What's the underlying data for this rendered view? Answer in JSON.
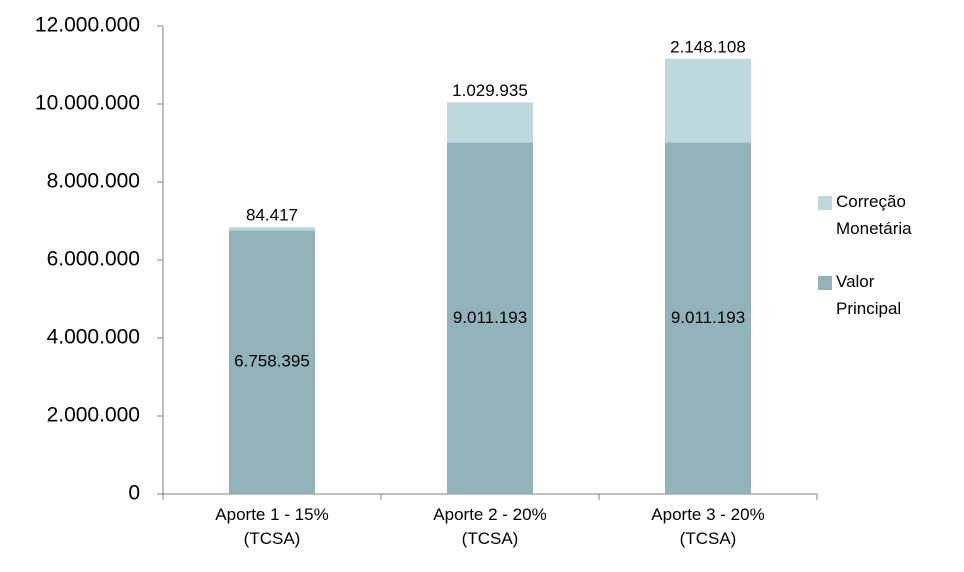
{
  "chart_data": {
    "type": "stacked_bar",
    "categories": [
      "Aporte 1 - 15% (TCSA)",
      "Aporte 2 - 20% (TCSA)",
      "Aporte 3 - 20% (TCSA)"
    ],
    "series": [
      {
        "name": "Valor Principal",
        "color": "#93b3bb",
        "values": [
          6758395,
          9011193,
          9011193
        ],
        "value_labels": [
          "6.758.395",
          "9.011.193",
          "9.011.193"
        ]
      },
      {
        "name": "Correção Monetária",
        "color": "#bed8e0",
        "values": [
          84417,
          1029935,
          2148108
        ],
        "value_labels": [
          "84.417",
          "1.029.935",
          "2.148.108"
        ]
      }
    ],
    "ylim": [
      0,
      12000000
    ],
    "yticks": [
      0,
      {
        "value": 2000000,
        "label": "2.000.000"
      },
      {
        "value": 4000000,
        "label": "4.000.000"
      },
      {
        "value": 6000000,
        "label": "6.000.000"
      },
      {
        "value": 8000000,
        "label": "8.000.000"
      },
      {
        "value": 10000000,
        "label": "10.000.000"
      },
      {
        "value": 12000000,
        "label": "12.000.000"
      }
    ],
    "legend": "right"
  }
}
